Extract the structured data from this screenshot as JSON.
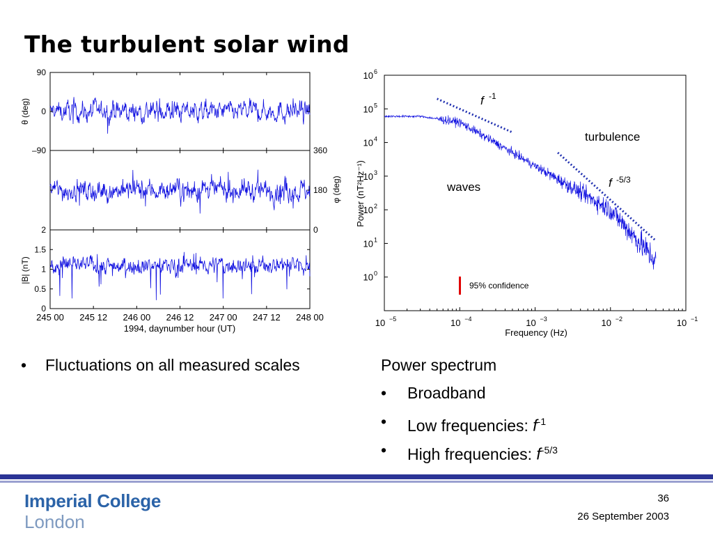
{
  "slide": {
    "title": "The turbulent solar wind",
    "left_bullet": "Fluctuations on all measured scales",
    "right_heading": "Power spectrum",
    "right_bullets": [
      {
        "text": "Broadband"
      },
      {
        "text": "Low frequencies: ",
        "f": "f",
        "exp": "-1"
      },
      {
        "text": "High frequencies: ",
        "f": "f",
        "exp": "-5/3"
      }
    ],
    "bullet_symbol": "•",
    "logo_line1": "Imperial College",
    "logo_line2": "London",
    "page_number": "36",
    "date": "26 September 2003"
  },
  "colors": {
    "trace": "#1010e0",
    "dotted": "#2030b0",
    "confidence": "#e00000",
    "footer_rule": "#2b3496",
    "logo": "#2b63a8"
  },
  "chart_data": [
    {
      "type": "line",
      "panel": "time series",
      "xlabel": "1994, daynumber hour (UT)",
      "xlim": [
        245.0,
        248.0
      ],
      "xticks": [
        245.0,
        245.5,
        246.0,
        246.5,
        247.0,
        247.5,
        248.0
      ],
      "xtick_labels": [
        "245 00",
        "245 12",
        "246 00",
        "246 12",
        "247 00",
        "247 12",
        "248 00"
      ],
      "subplots": [
        {
          "ylabel": "θ (deg)",
          "ylim": [
            -90,
            90
          ],
          "yticks": [
            90,
            0,
            -90
          ],
          "ytick_labels": [
            "90",
            "0",
            "–90"
          ],
          "axis_side": "left",
          "baseline": 0,
          "spread": 80
        },
        {
          "ylabel": "φ (deg)",
          "ylim": [
            0,
            360
          ],
          "yticks": [
            360,
            180,
            0
          ],
          "ytick_labels": [
            "360",
            "180",
            "0"
          ],
          "axis_side": "right",
          "baseline": 180,
          "spread": 170
        },
        {
          "ylabel": "|B| (nT)",
          "ylim": [
            0,
            2
          ],
          "yticks": [
            2,
            1.5,
            1,
            0.5,
            0
          ],
          "ytick_labels": [
            "2",
            "1.5",
            "1",
            "0.5",
            "0"
          ],
          "axis_side": "left",
          "baseline": 1.1,
          "spread": 0.9
        }
      ]
    },
    {
      "type": "line",
      "panel": "power spectrum",
      "xlabel": "Frequency (Hz)",
      "ylabel": "Power (nT²Hz⁻¹)",
      "xscale": "log",
      "yscale": "log",
      "xlim": [
        1e-05,
        0.1
      ],
      "ylim": [
        0.1,
        1000000.0
      ],
      "xtick_exponents": [
        -5,
        -4,
        -3,
        -2,
        -1
      ],
      "ytick_exponents": [
        0,
        1,
        2,
        3,
        4,
        5,
        6
      ],
      "spectrum_anchor_points": [
        {
          "x": 1e-05,
          "y": 60000
        },
        {
          "x": 3e-05,
          "y": 60000
        },
        {
          "x": 0.0001,
          "y": 40000
        },
        {
          "x": 0.0005,
          "y": 5000
        },
        {
          "x": 0.001,
          "y": 2000
        },
        {
          "x": 0.01,
          "y": 100
        },
        {
          "x": 0.04,
          "y": 3
        }
      ],
      "reference_lines": [
        {
          "label": "f -1",
          "x": [
            5e-05,
            0.0005
          ],
          "y": [
            200000,
            20000
          ]
        },
        {
          "label": "f -5/3",
          "x": [
            0.002,
            0.04
          ],
          "y": [
            5000,
            12
          ]
        }
      ],
      "annotations": [
        "waves",
        "turbulence",
        "95% confidence"
      ],
      "annotation_f": "f",
      "annotation_exp1": "-1",
      "annotation_exp2": "-5/3"
    }
  ]
}
